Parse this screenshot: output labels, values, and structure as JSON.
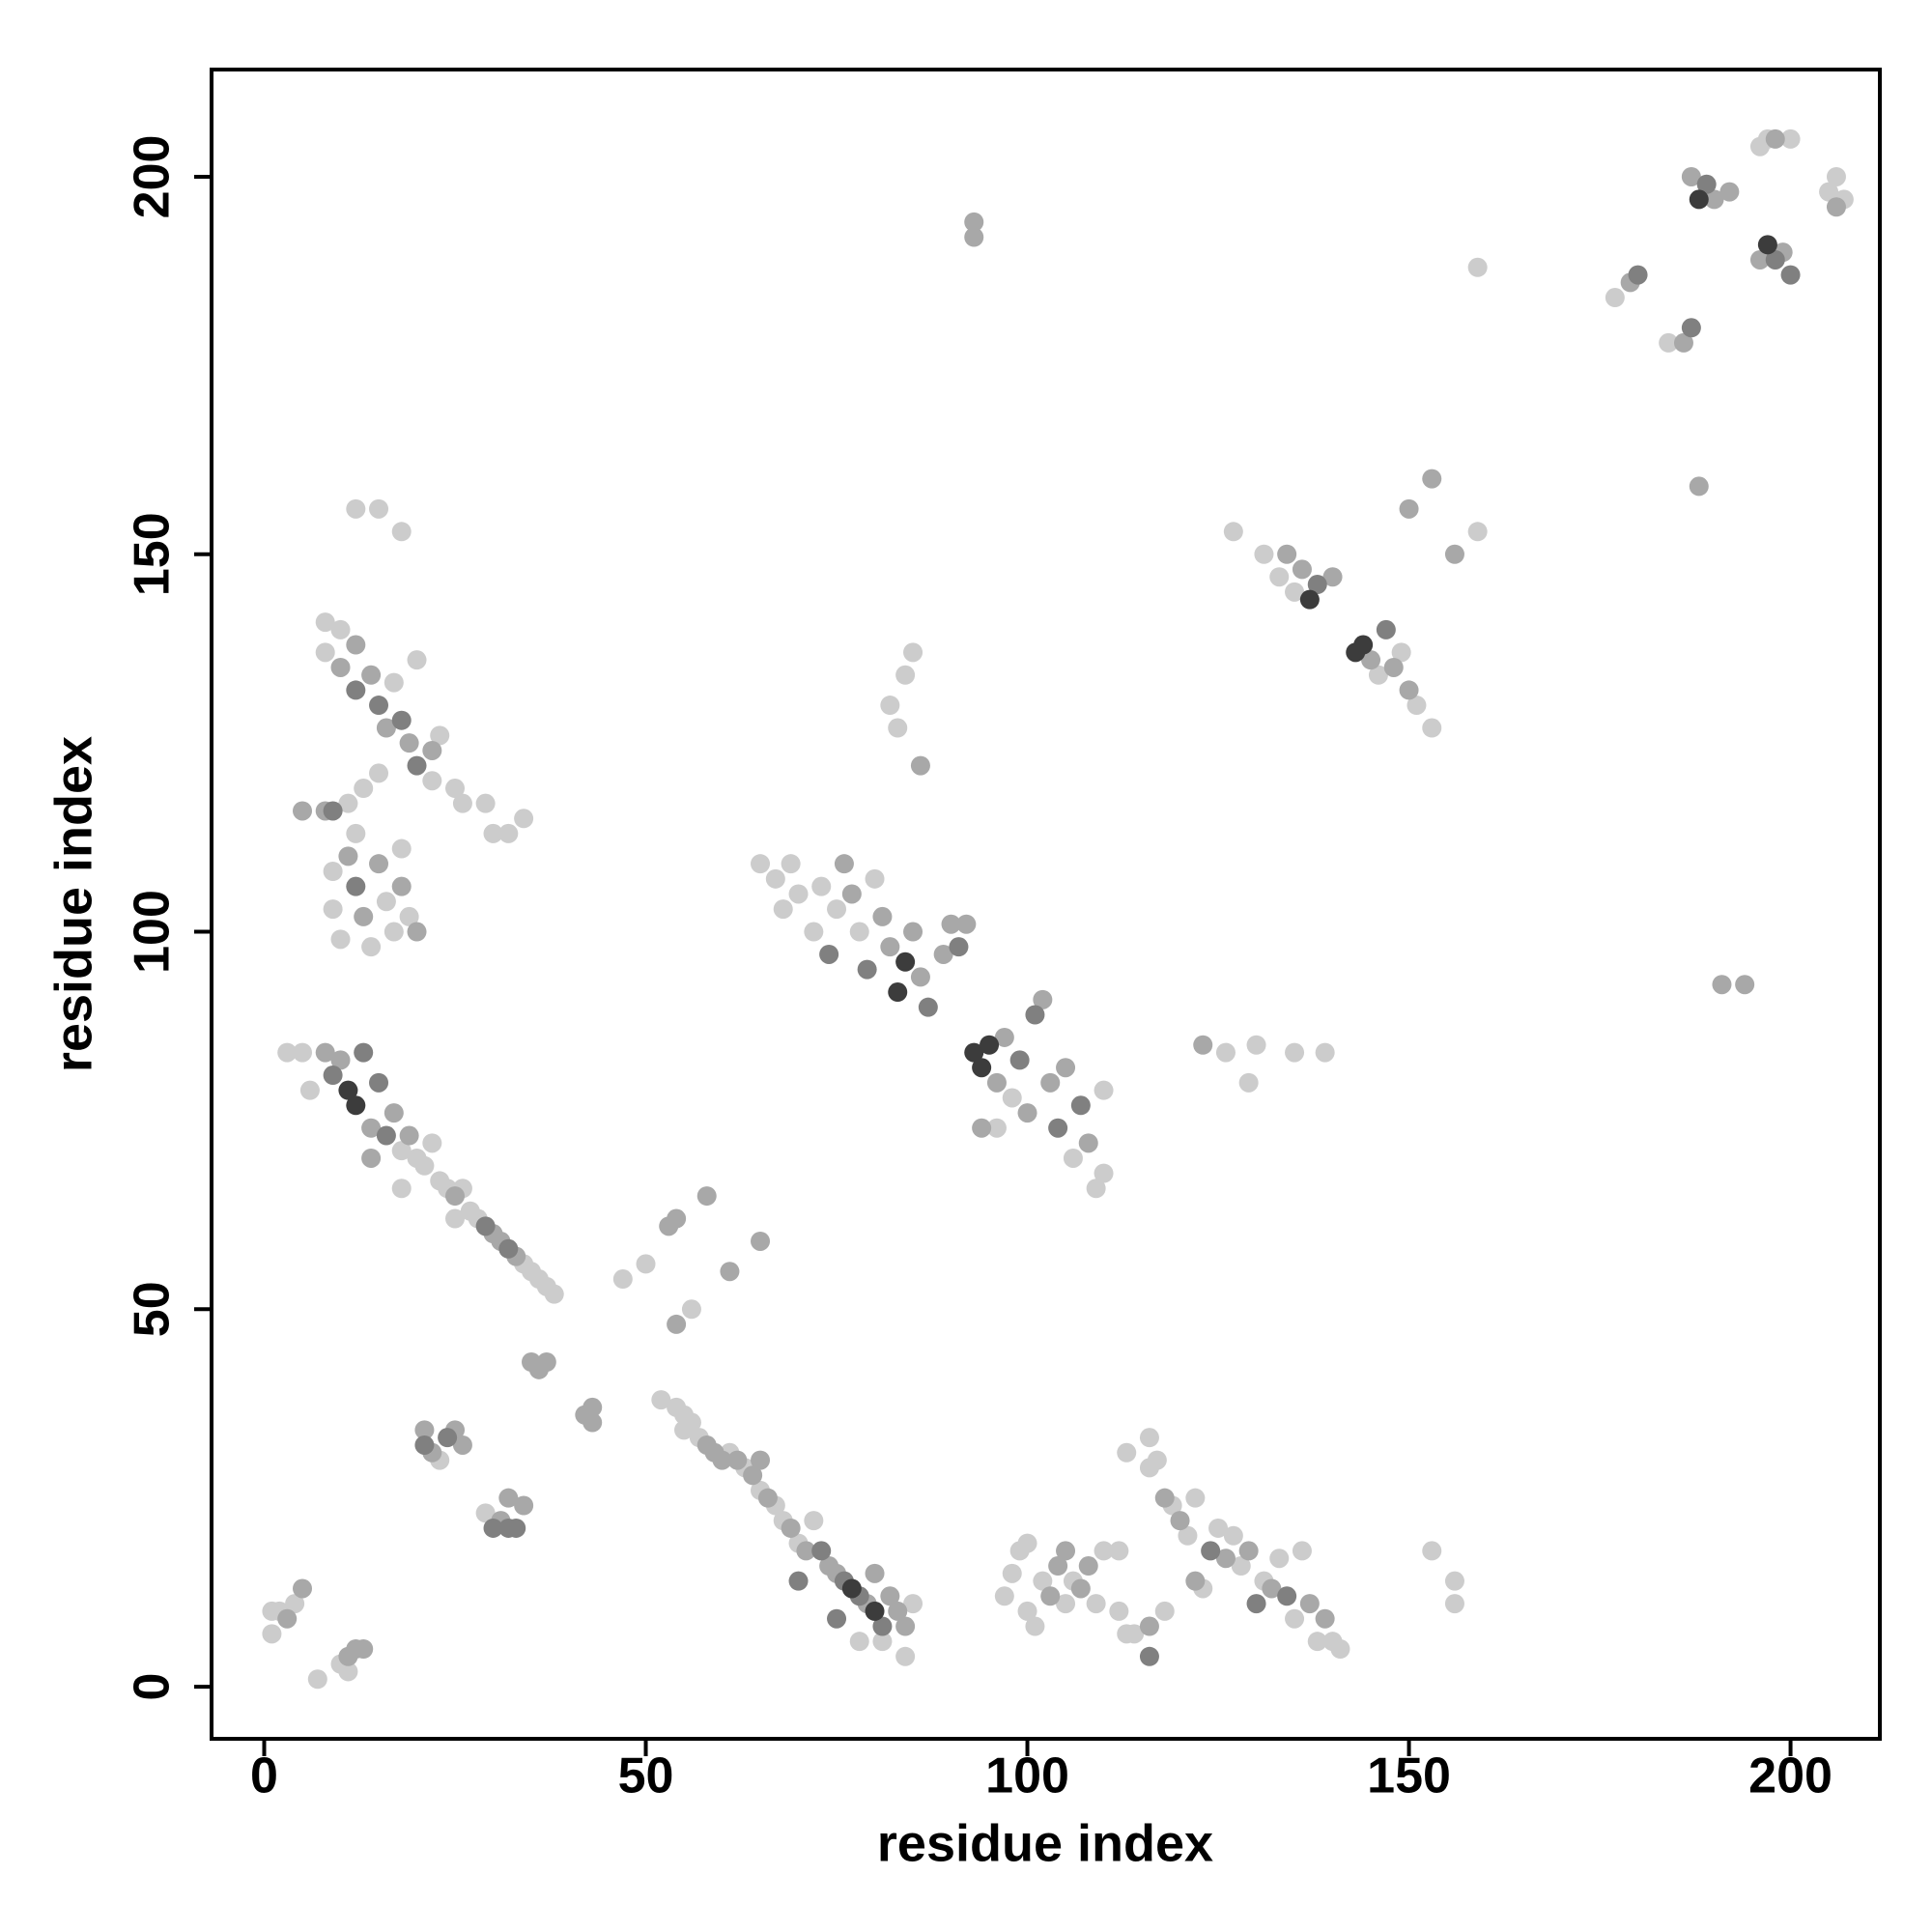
{
  "chart_data": {
    "type": "scatter",
    "x_label": "residue index",
    "y_label": "residue index",
    "xlim": [
      -6.9,
      211.7
    ],
    "ylim": [
      -6.9,
      214.2
    ],
    "xticks": [
      0,
      50,
      100,
      150,
      200
    ],
    "yticks": [
      0,
      50,
      100,
      150,
      200
    ],
    "grid": false,
    "series": [
      {
        "color": "#cccccc",
        "x": [
          1,
          2,
          4,
          1,
          7,
          10,
          11,
          23,
          29,
          52,
          54,
          55,
          55,
          56,
          57,
          61,
          63,
          65,
          67,
          68,
          70,
          72,
          84,
          85,
          78,
          81,
          97,
          98,
          99,
          100,
          100,
          101,
          102,
          105,
          106,
          109,
          110,
          112,
          112,
          113,
          114,
          116,
          116,
          117,
          119,
          121,
          122,
          123,
          125,
          127,
          128,
          131,
          133,
          135,
          136,
          138,
          140,
          141,
          118,
          113,
          153,
          156,
          156,
          3,
          5,
          6,
          18,
          20,
          21,
          22,
          23,
          24,
          26,
          27,
          28,
          34,
          35,
          36,
          37,
          38,
          18,
          25,
          47,
          50,
          56,
          8,
          10,
          8,
          17,
          20,
          22,
          23,
          25,
          26,
          29,
          30,
          32,
          34,
          11,
          12,
          13,
          15,
          9,
          9,
          10,
          14,
          16,
          17,
          18,
          19,
          12,
          15,
          18,
          65,
          67,
          68,
          69,
          70,
          72,
          73,
          75,
          78,
          80,
          98,
          106,
          109,
          110,
          110,
          82,
          84,
          85,
          83,
          96,
          127,
          131,
          133,
          135,
          146,
          149,
          151,
          153,
          159,
          159,
          126,
          129,
          130,
          135,
          139,
          177,
          184,
          196,
          197,
          200,
          205,
          207,
          206
        ],
        "y": [
          10,
          10,
          11,
          7,
          1,
          3,
          2,
          30,
          23,
          38,
          37,
          36,
          34,
          35,
          33,
          31,
          29,
          26,
          24,
          22,
          19,
          22,
          4,
          11,
          6,
          6,
          12,
          15,
          18,
          19,
          10,
          8,
          14,
          11,
          14,
          11,
          18,
          18,
          10,
          7,
          7,
          33,
          29,
          30,
          24,
          20,
          25,
          13,
          21,
          20,
          16,
          14,
          17,
          9,
          18,
          6,
          6,
          5,
          10,
          31,
          18,
          14,
          11,
          84,
          84,
          79,
          71,
          70,
          69,
          72,
          67,
          66,
          66,
          63,
          62,
          56,
          55,
          54,
          53,
          52,
          66,
          62,
          54,
          56,
          50,
          141,
          140,
          137,
          133,
          136,
          120,
          126,
          119,
          117,
          117,
          113,
          113,
          115,
          117,
          113,
          119,
          121,
          108,
          103,
          99,
          98,
          104,
          100,
          111,
          102,
          156,
          156,
          153,
          109,
          107,
          103,
          109,
          105,
          100,
          106,
          103,
          100,
          107,
          78,
          70,
          66,
          79,
          68,
          130,
          134,
          137,
          127,
          74,
          153,
          150,
          147,
          145,
          134,
          137,
          130,
          127,
          153,
          188,
          84,
          80,
          85,
          84,
          84,
          184,
          178,
          204,
          205,
          205,
          198,
          197,
          200
        ]
      },
      {
        "color": "#a8a8a8",
        "x": [
          3,
          5,
          11,
          12,
          13,
          21,
          22,
          25,
          26,
          31,
          32,
          34,
          35,
          36,
          37,
          42,
          43,
          43,
          58,
          59,
          60,
          62,
          64,
          65,
          66,
          69,
          71,
          74,
          75,
          79,
          80,
          82,
          83,
          84,
          103,
          104,
          105,
          107,
          108,
          116,
          118,
          120,
          122,
          126,
          129,
          132,
          137,
          139,
          8,
          10,
          14,
          17,
          19,
          25,
          30,
          31,
          33,
          14,
          53,
          54,
          58,
          61,
          65,
          54,
          10,
          12,
          14,
          16,
          19,
          22,
          8,
          11,
          13,
          15,
          18,
          20,
          5,
          76,
          77,
          81,
          82,
          85,
          86,
          89,
          90,
          92,
          96,
          97,
          100,
          102,
          103,
          105,
          108,
          94,
          86,
          134,
          136,
          140,
          145,
          148,
          150,
          150,
          153,
          156,
          93,
          93,
          123,
          191,
          194,
          188,
          179,
          186,
          187,
          190,
          192,
          196,
          199,
          198,
          206
        ],
        "y": [
          9,
          13,
          4,
          5,
          5,
          34,
          31,
          34,
          32,
          22,
          25,
          24,
          43,
          42,
          43,
          36,
          37,
          35,
          32,
          31,
          30,
          30,
          28,
          30,
          25,
          21,
          18,
          16,
          15,
          11,
          15,
          12,
          10,
          8,
          12,
          16,
          18,
          13,
          16,
          8,
          25,
          22,
          14,
          17,
          18,
          13,
          11,
          9,
          84,
          83,
          74,
          76,
          73,
          65,
          60,
          59,
          57,
          70,
          61,
          62,
          65,
          55,
          59,
          48,
          135,
          138,
          134,
          127,
          125,
          124,
          116,
          110,
          102,
          109,
          106,
          100,
          116,
          109,
          105,
          102,
          98,
          100,
          94,
          97,
          101,
          101,
          80,
          86,
          76,
          91,
          80,
          82,
          72,
          74,
          122,
          150,
          148,
          147,
          136,
          135,
          132,
          156,
          160,
          150,
          192,
          194,
          85,
          93,
          93,
          159,
          186,
          178,
          200,
          197,
          198,
          189,
          190,
          205,
          196
        ]
      },
      {
        "color": "#808080",
        "x": [
          9,
          13,
          15,
          16,
          21,
          24,
          30,
          32,
          33,
          32,
          29,
          73,
          76,
          78,
          81,
          74,
          79,
          87,
          91,
          104,
          107,
          124,
          130,
          134,
          138,
          147,
          15,
          12,
          18,
          20,
          12,
          9,
          189,
          198,
          200,
          180,
          187,
          99,
          101,
          116,
          75,
          70
        ],
        "y": [
          81,
          84,
          80,
          73,
          32,
          33,
          21,
          21,
          21,
          58,
          61,
          18,
          14,
          12,
          8,
          97,
          95,
          90,
          98,
          74,
          77,
          18,
          11,
          12,
          146,
          140,
          130,
          132,
          128,
          122,
          106,
          116,
          199,
          189,
          187,
          187,
          180,
          83,
          89,
          4,
          9,
          14
        ]
      },
      {
        "color": "#3c3c3c",
        "x": [
          11,
          12,
          93,
          94,
          95,
          83,
          84,
          137,
          143,
          144,
          80,
          77,
          197,
          188
        ],
        "y": [
          79,
          77,
          84,
          82,
          85,
          92,
          96,
          144,
          137,
          138,
          10,
          13,
          191,
          197
        ]
      }
    ]
  }
}
